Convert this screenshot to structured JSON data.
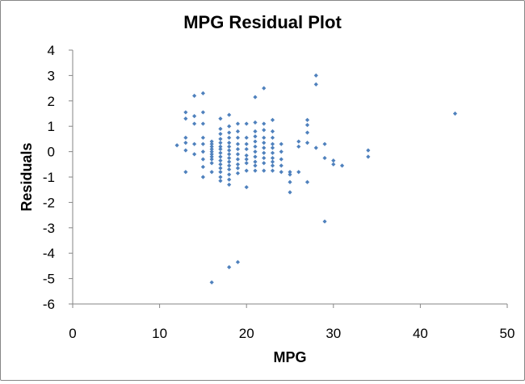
{
  "chart_data": {
    "type": "scatter",
    "title": "MPG  Residual Plot",
    "xlabel": "MPG",
    "ylabel": "Residuals",
    "xlim": [
      0,
      50
    ],
    "ylim": [
      -6,
      4
    ],
    "xticks": [
      0,
      10,
      20,
      30,
      40,
      50
    ],
    "yticks": [
      4,
      3,
      2,
      1,
      0,
      -1,
      -2,
      -3,
      -4,
      -5,
      -6
    ],
    "grid": false,
    "legend": "none",
    "marker_color": "#4f81bd",
    "marker": "diamond",
    "points": [
      [
        12,
        0.25
      ],
      [
        13,
        1.55
      ],
      [
        13,
        1.3
      ],
      [
        13,
        0.55
      ],
      [
        13,
        0.35
      ],
      [
        13,
        0.05
      ],
      [
        13,
        -0.8
      ],
      [
        14,
        2.2
      ],
      [
        14,
        1.4
      ],
      [
        14,
        1.1
      ],
      [
        14,
        0.3
      ],
      [
        14,
        -0.1
      ],
      [
        15,
        2.3
      ],
      [
        15,
        1.55
      ],
      [
        15,
        1.1
      ],
      [
        15,
        0.55
      ],
      [
        15,
        0.3
      ],
      [
        15,
        0.0
      ],
      [
        15,
        -0.3
      ],
      [
        15,
        -0.6
      ],
      [
        15,
        -1.0
      ],
      [
        16,
        0.4
      ],
      [
        16,
        0.3
      ],
      [
        16,
        0.2
      ],
      [
        16,
        0.1
      ],
      [
        16,
        0.0
      ],
      [
        16,
        -0.1
      ],
      [
        16,
        -0.2
      ],
      [
        16,
        -0.3
      ],
      [
        16,
        -0.45
      ],
      [
        16,
        -0.8
      ],
      [
        16,
        -5.15
      ],
      [
        17,
        1.3
      ],
      [
        17,
        0.9
      ],
      [
        17,
        0.7
      ],
      [
        17,
        0.5
      ],
      [
        17,
        0.35
      ],
      [
        17,
        0.2
      ],
      [
        17,
        0.1
      ],
      [
        17,
        -0.05
      ],
      [
        17,
        -0.2
      ],
      [
        17,
        -0.35
      ],
      [
        17,
        -0.5
      ],
      [
        17,
        -0.65
      ],
      [
        17,
        -0.8
      ],
      [
        17,
        -1.0
      ],
      [
        17,
        -1.15
      ],
      [
        18,
        1.45
      ],
      [
        18,
        1.0
      ],
      [
        18,
        0.75
      ],
      [
        18,
        0.55
      ],
      [
        18,
        0.35
      ],
      [
        18,
        0.2
      ],
      [
        18,
        0.05
      ],
      [
        18,
        -0.1
      ],
      [
        18,
        -0.25
      ],
      [
        18,
        -0.4
      ],
      [
        18,
        -0.55
      ],
      [
        18,
        -0.7
      ],
      [
        18,
        -0.9
      ],
      [
        18,
        -1.1
      ],
      [
        18,
        -1.3
      ],
      [
        18,
        -4.55
      ],
      [
        19,
        1.1
      ],
      [
        19,
        0.8
      ],
      [
        19,
        0.55
      ],
      [
        19,
        0.3
      ],
      [
        19,
        0.1
      ],
      [
        19,
        -0.1
      ],
      [
        19,
        -0.3
      ],
      [
        19,
        -0.5
      ],
      [
        19,
        -0.65
      ],
      [
        19,
        -0.85
      ],
      [
        19,
        -4.35
      ],
      [
        20,
        1.1
      ],
      [
        20,
        0.55
      ],
      [
        20,
        0.3
      ],
      [
        20,
        0.1
      ],
      [
        20,
        -0.15
      ],
      [
        20,
        -0.3
      ],
      [
        20,
        -0.45
      ],
      [
        20,
        -0.75
      ],
      [
        20,
        -1.4
      ],
      [
        21,
        2.15
      ],
      [
        21,
        1.15
      ],
      [
        21,
        0.8
      ],
      [
        21,
        0.6
      ],
      [
        21,
        0.4
      ],
      [
        21,
        0.2
      ],
      [
        21,
        0.0
      ],
      [
        21,
        -0.2
      ],
      [
        21,
        -0.4
      ],
      [
        21,
        -0.55
      ],
      [
        21,
        -0.75
      ],
      [
        22,
        2.5
      ],
      [
        22,
        1.1
      ],
      [
        22,
        0.85
      ],
      [
        22,
        0.55
      ],
      [
        22,
        0.35
      ],
      [
        22,
        0.15
      ],
      [
        22,
        -0.05
      ],
      [
        22,
        -0.25
      ],
      [
        22,
        -0.45
      ],
      [
        22,
        -0.75
      ],
      [
        23,
        1.25
      ],
      [
        23,
        0.8
      ],
      [
        23,
        0.55
      ],
      [
        23,
        0.3
      ],
      [
        23,
        0.15
      ],
      [
        23,
        -0.05
      ],
      [
        23,
        -0.25
      ],
      [
        23,
        -0.4
      ],
      [
        23,
        -0.55
      ],
      [
        23,
        -0.75
      ],
      [
        24,
        0.3
      ],
      [
        24,
        0.0
      ],
      [
        24,
        -0.3
      ],
      [
        24,
        -0.55
      ],
      [
        24,
        -0.8
      ],
      [
        25,
        -0.8
      ],
      [
        25,
        -0.9
      ],
      [
        25,
        -1.2
      ],
      [
        25,
        -1.6
      ],
      [
        26,
        0.4
      ],
      [
        26,
        0.2
      ],
      [
        26,
        -0.8
      ],
      [
        27,
        1.25
      ],
      [
        27,
        1.05
      ],
      [
        27,
        0.75
      ],
      [
        27,
        0.35
      ],
      [
        27,
        -1.2
      ],
      [
        28,
        3.0
      ],
      [
        28,
        2.65
      ],
      [
        28,
        0.15
      ],
      [
        29,
        0.3
      ],
      [
        29,
        -0.25
      ],
      [
        29,
        -2.75
      ],
      [
        30,
        -0.35
      ],
      [
        30,
        -0.5
      ],
      [
        31,
        -0.55
      ],
      [
        34,
        0.05
      ],
      [
        34,
        -0.2
      ],
      [
        44,
        1.5
      ]
    ]
  }
}
